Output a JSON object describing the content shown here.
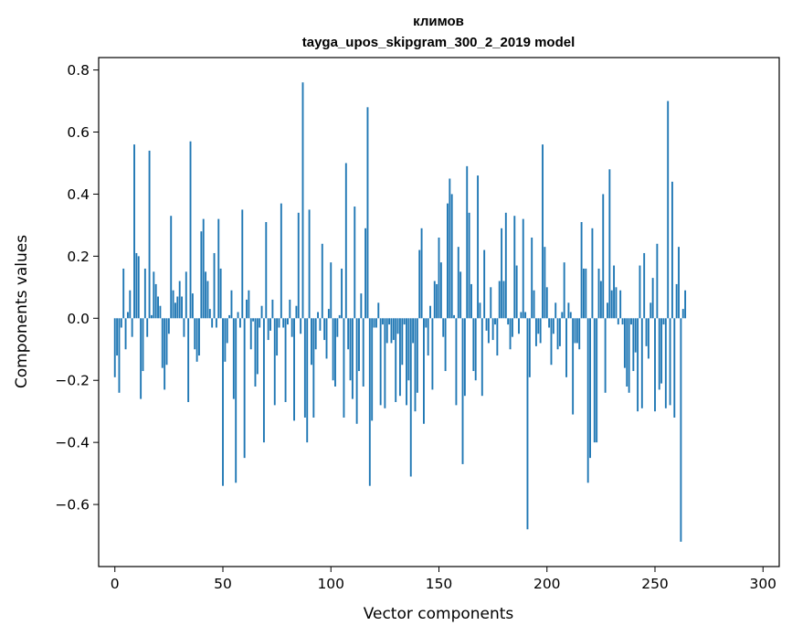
{
  "chart_data": {
    "type": "bar",
    "title": "климов",
    "subtitle": "tayga_upos_skipgram_300_2_2019 model",
    "xlabel": "Vector components",
    "ylabel": "Components values",
    "xlim": [
      -7.5,
      307.5
    ],
    "ylim": [
      -0.8,
      0.84
    ],
    "xticks": [
      0,
      50,
      100,
      150,
      200,
      250,
      300
    ],
    "yticks": [
      -0.6,
      -0.4,
      -0.2,
      0.0,
      0.2,
      0.4,
      0.6,
      0.8
    ],
    "ytick_labels": [
      "−0.6",
      "−0.4",
      "−0.2",
      "0.0",
      "0.2",
      "0.4",
      "0.6",
      "0.8"
    ],
    "bar_color": "#1f77b4",
    "values": [
      -0.19,
      -0.12,
      -0.24,
      -0.03,
      0.16,
      -0.1,
      0.02,
      0.09,
      -0.06,
      0.56,
      0.21,
      0.2,
      -0.26,
      -0.17,
      0.16,
      -0.06,
      0.54,
      0.01,
      0.15,
      0.11,
      0.07,
      0.04,
      -0.16,
      -0.23,
      -0.15,
      -0.05,
      0.33,
      0.09,
      0.05,
      0.07,
      0.12,
      0.07,
      -0.06,
      0.15,
      -0.27,
      0.57,
      0.08,
      -0.1,
      -0.14,
      -0.12,
      0.28,
      0.32,
      0.15,
      0.12,
      0.03,
      -0.03,
      0.21,
      -0.03,
      0.32,
      0.16,
      -0.54,
      -0.14,
      -0.08,
      0.01,
      0.09,
      -0.26,
      -0.53,
      0.02,
      -0.03,
      0.35,
      -0.45,
      0.06,
      0.09,
      -0.1,
      -0.01,
      -0.22,
      -0.18,
      -0.03,
      0.04,
      -0.4,
      0.31,
      -0.07,
      -0.04,
      0.06,
      -0.28,
      -0.12,
      -0.03,
      0.37,
      -0.03,
      -0.27,
      -0.02,
      0.06,
      -0.06,
      -0.33,
      0.04,
      0.34,
      -0.05,
      0.76,
      -0.32,
      -0.4,
      0.35,
      -0.15,
      -0.32,
      -0.1,
      0.02,
      -0.04,
      0.24,
      -0.07,
      -0.13,
      0.03,
      0.18,
      -0.2,
      -0.22,
      -0.06,
      0.01,
      0.16,
      -0.32,
      0.5,
      -0.1,
      -0.2,
      -0.26,
      0.36,
      -0.34,
      -0.17,
      0.08,
      -0.22,
      0.29,
      0.68,
      -0.54,
      -0.33,
      -0.03,
      -0.03,
      0.05,
      -0.28,
      -0.02,
      -0.29,
      -0.08,
      -0.02,
      -0.08,
      -0.07,
      -0.27,
      -0.05,
      -0.25,
      -0.15,
      -0.02,
      -0.28,
      -0.2,
      -0.51,
      -0.08,
      -0.3,
      -0.24,
      0.22,
      0.29,
      -0.34,
      -0.03,
      -0.12,
      0.04,
      -0.23,
      0.12,
      0.11,
      0.26,
      0.18,
      -0.06,
      -0.17,
      0.37,
      0.45,
      0.4,
      0.01,
      -0.28,
      0.23,
      0.15,
      -0.47,
      -0.25,
      0.49,
      0.34,
      0.11,
      -0.17,
      -0.2,
      0.46,
      0.05,
      -0.25,
      0.22,
      -0.04,
      -0.08,
      0.1,
      -0.07,
      -0.02,
      -0.12,
      0.12,
      0.29,
      0.12,
      0.34,
      -0.02,
      -0.1,
      -0.06,
      0.33,
      0.17,
      -0.05,
      0.02,
      0.32,
      0.02,
      -0.68,
      -0.19,
      0.26,
      0.09,
      -0.09,
      -0.05,
      -0.08,
      0.56,
      0.23,
      0.1,
      -0.03,
      -0.15,
      -0.05,
      0.05,
      -0.1,
      -0.09,
      0.02,
      0.18,
      -0.19,
      0.05,
      0.02,
      -0.31,
      -0.08,
      -0.08,
      -0.1,
      0.31,
      0.16,
      0.16,
      -0.53,
      -0.45,
      0.29,
      -0.4,
      -0.4,
      0.16,
      0.12,
      0.4,
      -0.24,
      0.05,
      0.48,
      0.09,
      0.17,
      0.1,
      -0.02,
      0.09,
      -0.02,
      -0.16,
      -0.22,
      -0.24,
      -0.02,
      -0.17,
      -0.11,
      -0.3,
      0.17,
      -0.29,
      0.21,
      -0.09,
      -0.13,
      0.05,
      0.13,
      -0.3,
      0.24,
      -0.23,
      -0.21,
      -0.02,
      -0.29,
      0.7,
      -0.28,
      0.44,
      -0.32,
      0.11,
      0.23,
      -0.72,
      0.03,
      0.09
    ]
  }
}
